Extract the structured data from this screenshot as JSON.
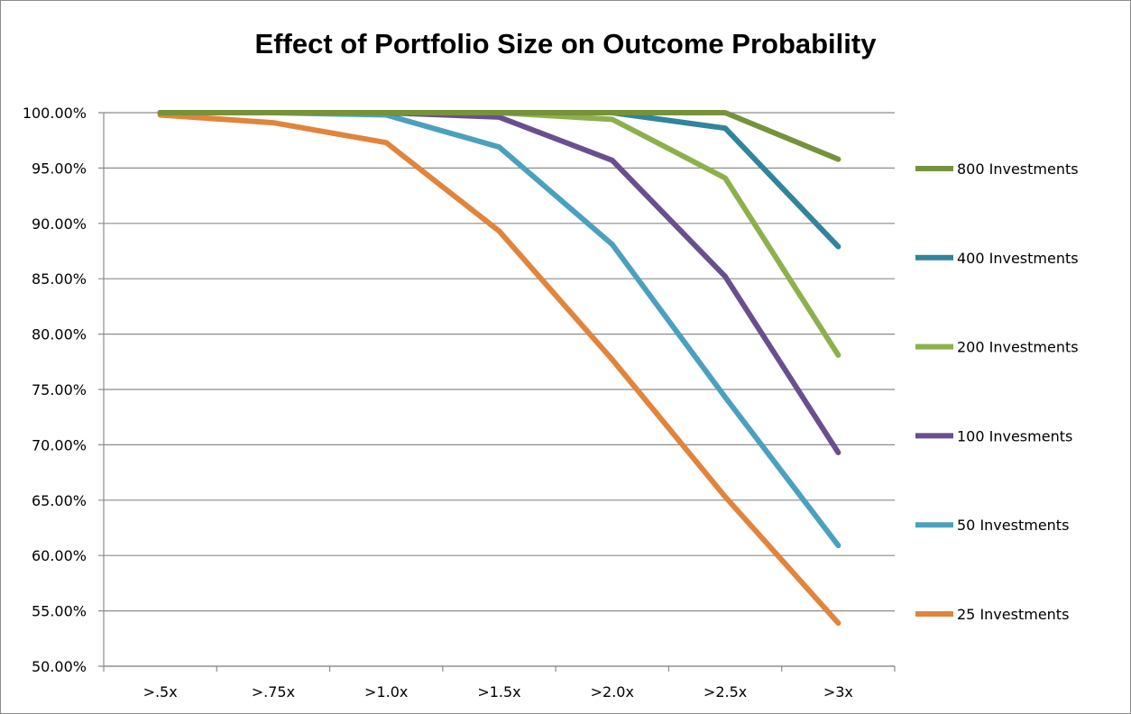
{
  "chart_data": {
    "type": "line",
    "title": "Effect of Portfolio Size on Outcome Probability",
    "xlabel": "",
    "ylabel": "",
    "categories": [
      ">.5x",
      ">.75x",
      ">1.0x",
      ">1.5x",
      ">2.0x",
      ">2.5x",
      ">3x"
    ],
    "yticks": [
      "50.00%",
      "55.00%",
      "60.00%",
      "65.00%",
      "70.00%",
      "75.00%",
      "80.00%",
      "85.00%",
      "90.00%",
      "95.00%",
      "100.00%"
    ],
    "ylim": [
      50,
      100
    ],
    "grid": true,
    "legend_position": "right",
    "series": [
      {
        "name": "800 Investments",
        "color": "#76923c",
        "values": [
          100.0,
          100.0,
          100.0,
          100.0,
          100.0,
          100.0,
          95.8
        ]
      },
      {
        "name": "400 Investments",
        "color": "#31849b",
        "values": [
          100.0,
          100.0,
          100.0,
          100.0,
          100.0,
          98.6,
          87.9
        ]
      },
      {
        "name": "200 Investments",
        "color": "#8db04d",
        "values": [
          100.0,
          100.0,
          100.0,
          100.0,
          99.4,
          94.1,
          78.1
        ]
      },
      {
        "name": "100 Invesments",
        "color": "#6a4f8f",
        "values": [
          100.0,
          100.0,
          100.0,
          99.6,
          95.7,
          85.2,
          69.3
        ]
      },
      {
        "name": "50 Investments",
        "color": "#4ba1bd",
        "values": [
          100.0,
          100.0,
          99.8,
          96.9,
          88.1,
          74.3,
          60.9
        ]
      },
      {
        "name": "25 Investments",
        "color": "#e1843c",
        "values": [
          99.8,
          99.1,
          97.3,
          89.3,
          77.7,
          65.3,
          53.9
        ]
      }
    ]
  }
}
